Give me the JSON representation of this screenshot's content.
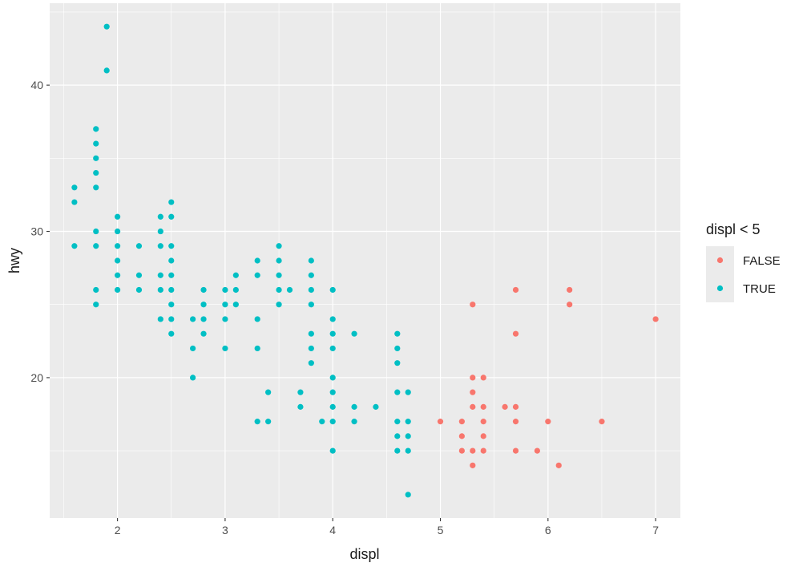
{
  "chart_data": {
    "type": "scatter",
    "title": "",
    "xlabel": "displ",
    "ylabel": "hwy",
    "xlim": [
      1.37,
      7.23
    ],
    "ylim": [
      10.4,
      45.6
    ],
    "x_ticks": [
      2,
      3,
      4,
      5,
      6,
      7
    ],
    "y_ticks": [
      20,
      30,
      40
    ],
    "grid": true,
    "legend": {
      "title": "displ < 5",
      "position": "right",
      "entries": [
        {
          "label": "FALSE",
          "color": "#F8766D"
        },
        {
          "label": "TRUE",
          "color": "#00BFC4"
        }
      ]
    },
    "series": [
      {
        "name": "FALSE",
        "color": "#F8766D",
        "points": [
          [
            5.3,
            25
          ],
          [
            5.7,
            26
          ],
          [
            5.7,
            23
          ],
          [
            6.2,
            26
          ],
          [
            6.2,
            25
          ],
          [
            7.0,
            24
          ],
          [
            5.3,
            20
          ],
          [
            5.4,
            20
          ],
          [
            5.3,
            19
          ],
          [
            5.3,
            18
          ],
          [
            5.4,
            18
          ],
          [
            5.6,
            18
          ],
          [
            5.7,
            18
          ],
          [
            5.0,
            17
          ],
          [
            5.2,
            17
          ],
          [
            5.4,
            17
          ],
          [
            5.7,
            17
          ],
          [
            6.0,
            17
          ],
          [
            6.5,
            17
          ],
          [
            5.2,
            16
          ],
          [
            5.4,
            16
          ],
          [
            5.2,
            15
          ],
          [
            5.3,
            15
          ],
          [
            5.4,
            15
          ],
          [
            5.7,
            15
          ],
          [
            5.9,
            15
          ],
          [
            5.3,
            14
          ],
          [
            6.1,
            14
          ]
        ]
      },
      {
        "name": "TRUE",
        "color": "#00BFC4",
        "points": [
          [
            1.9,
            44
          ],
          [
            1.9,
            41
          ],
          [
            1.8,
            37
          ],
          [
            1.8,
            36
          ],
          [
            1.8,
            35
          ],
          [
            1.8,
            34
          ],
          [
            1.8,
            33
          ],
          [
            1.8,
            30
          ],
          [
            1.8,
            29
          ],
          [
            1.8,
            26
          ],
          [
            1.8,
            25
          ],
          [
            1.6,
            33
          ],
          [
            1.6,
            32
          ],
          [
            1.6,
            29
          ],
          [
            2.0,
            31
          ],
          [
            2.0,
            30
          ],
          [
            2.0,
            29
          ],
          [
            2.0,
            28
          ],
          [
            2.0,
            27
          ],
          [
            2.0,
            26
          ],
          [
            2.2,
            29
          ],
          [
            2.2,
            27
          ],
          [
            2.2,
            26
          ],
          [
            2.4,
            31
          ],
          [
            2.4,
            30
          ],
          [
            2.4,
            29
          ],
          [
            2.4,
            27
          ],
          [
            2.4,
            26
          ],
          [
            2.4,
            24
          ],
          [
            2.5,
            32
          ],
          [
            2.5,
            31
          ],
          [
            2.5,
            29
          ],
          [
            2.5,
            28
          ],
          [
            2.5,
            27
          ],
          [
            2.5,
            26
          ],
          [
            2.5,
            25
          ],
          [
            2.5,
            24
          ],
          [
            2.5,
            23
          ],
          [
            2.7,
            24
          ],
          [
            2.7,
            22
          ],
          [
            2.7,
            20
          ],
          [
            2.8,
            26
          ],
          [
            2.8,
            25
          ],
          [
            2.8,
            24
          ],
          [
            2.8,
            23
          ],
          [
            3.0,
            26
          ],
          [
            3.0,
            25
          ],
          [
            3.0,
            24
          ],
          [
            3.0,
            22
          ],
          [
            3.1,
            27
          ],
          [
            3.1,
            26
          ],
          [
            3.1,
            25
          ],
          [
            3.3,
            28
          ],
          [
            3.3,
            27
          ],
          [
            3.3,
            24
          ],
          [
            3.3,
            22
          ],
          [
            3.3,
            17
          ],
          [
            3.4,
            19
          ],
          [
            3.4,
            17
          ],
          [
            3.5,
            29
          ],
          [
            3.5,
            28
          ],
          [
            3.5,
            27
          ],
          [
            3.5,
            26
          ],
          [
            3.5,
            25
          ],
          [
            3.6,
            26
          ],
          [
            3.7,
            19
          ],
          [
            3.7,
            18
          ],
          [
            3.8,
            28
          ],
          [
            3.8,
            27
          ],
          [
            3.8,
            26
          ],
          [
            3.8,
            25
          ],
          [
            3.8,
            23
          ],
          [
            3.8,
            22
          ],
          [
            3.8,
            21
          ],
          [
            3.9,
            17
          ],
          [
            4.0,
            26
          ],
          [
            4.0,
            24
          ],
          [
            4.0,
            23
          ],
          [
            4.0,
            22
          ],
          [
            4.0,
            20
          ],
          [
            4.0,
            19
          ],
          [
            4.0,
            18
          ],
          [
            4.0,
            17
          ],
          [
            4.0,
            15
          ],
          [
            4.2,
            23
          ],
          [
            4.2,
            18
          ],
          [
            4.2,
            17
          ],
          [
            4.4,
            18
          ],
          [
            4.6,
            23
          ],
          [
            4.6,
            22
          ],
          [
            4.6,
            21
          ],
          [
            4.6,
            19
          ],
          [
            4.6,
            17
          ],
          [
            4.6,
            16
          ],
          [
            4.6,
            15
          ],
          [
            4.7,
            19
          ],
          [
            4.7,
            17
          ],
          [
            4.7,
            16
          ],
          [
            4.7,
            15
          ],
          [
            4.7,
            12
          ]
        ]
      }
    ]
  }
}
